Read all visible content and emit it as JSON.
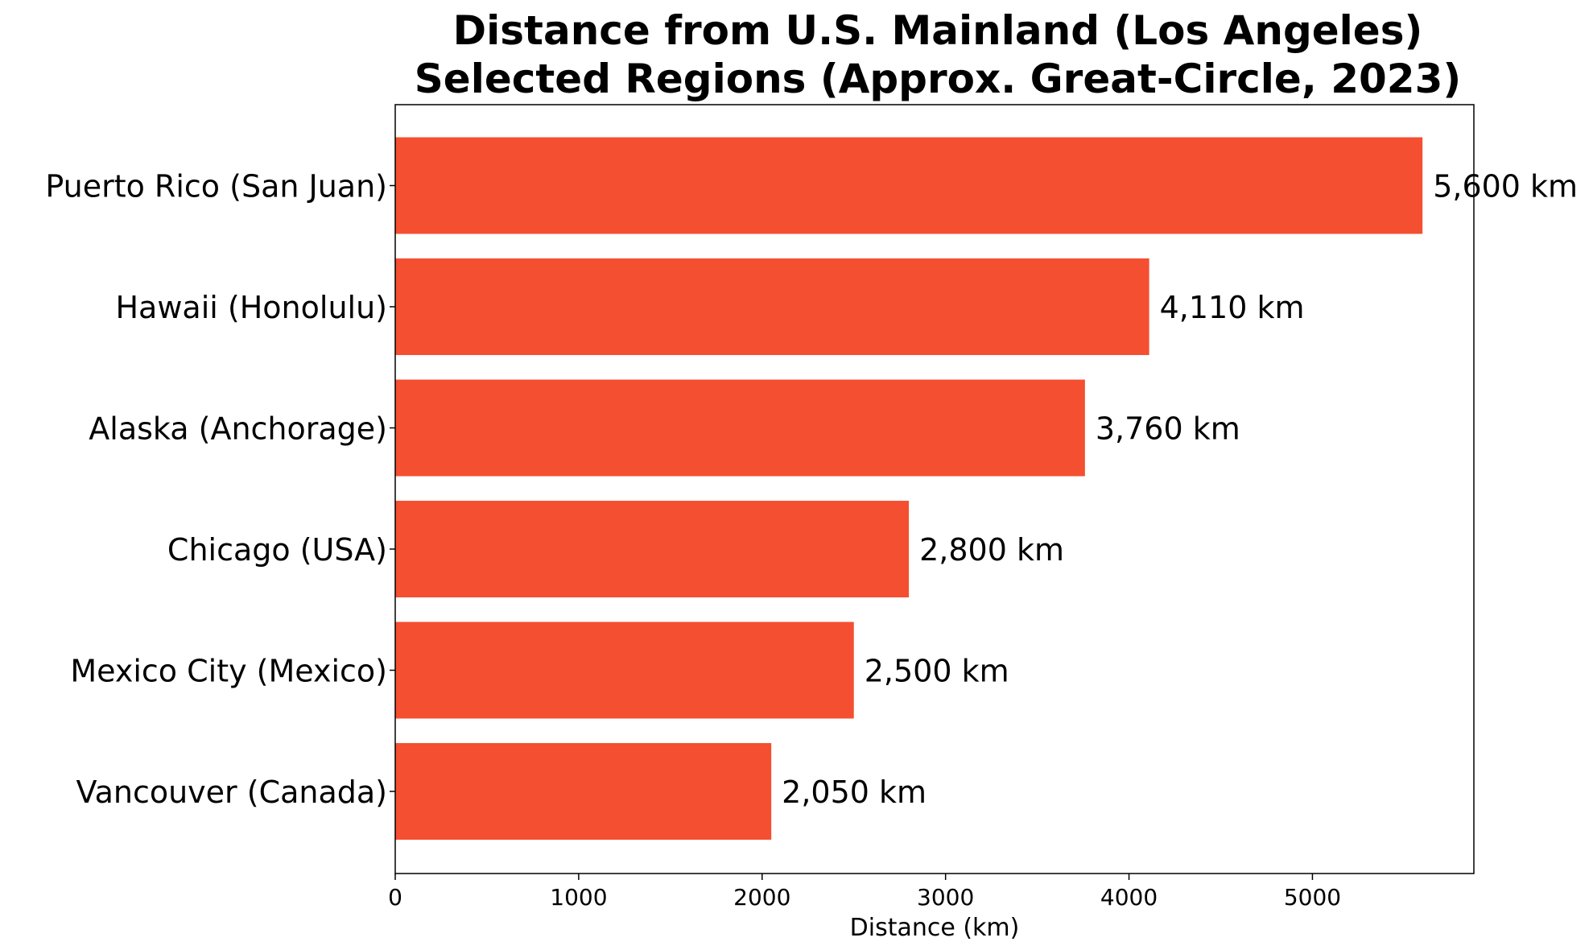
{
  "chart_data": {
    "type": "bar",
    "orientation": "horizontal",
    "title_lines": [
      "Distance from U.S. Mainland (Los Angeles)",
      "Selected Regions (Approx. Great-Circle, 2023)"
    ],
    "xlabel": "Distance (km)",
    "ylabel": "",
    "categories": [
      "Vancouver (Canada)",
      "Mexico City (Mexico)",
      "Chicago (USA)",
      "Alaska (Anchorage)",
      "Hawaii (Honolulu)",
      "Puerto Rico (San Juan)"
    ],
    "values": [
      2050,
      2500,
      2800,
      3760,
      4110,
      5600
    ],
    "data_labels": [
      "2,050 km",
      "2,500 km",
      "2,800 km",
      "3,760 km",
      "4,110 km",
      "5,600 km"
    ],
    "xlim": [
      0,
      5880
    ],
    "xticks": [
      0,
      1000,
      2000,
      3000,
      4000,
      5000
    ],
    "xtick_labels": [
      "0",
      "1000",
      "2000",
      "3000",
      "4000",
      "5000"
    ],
    "bar_color": "#f44f30",
    "grid": false,
    "legend": "none"
  }
}
